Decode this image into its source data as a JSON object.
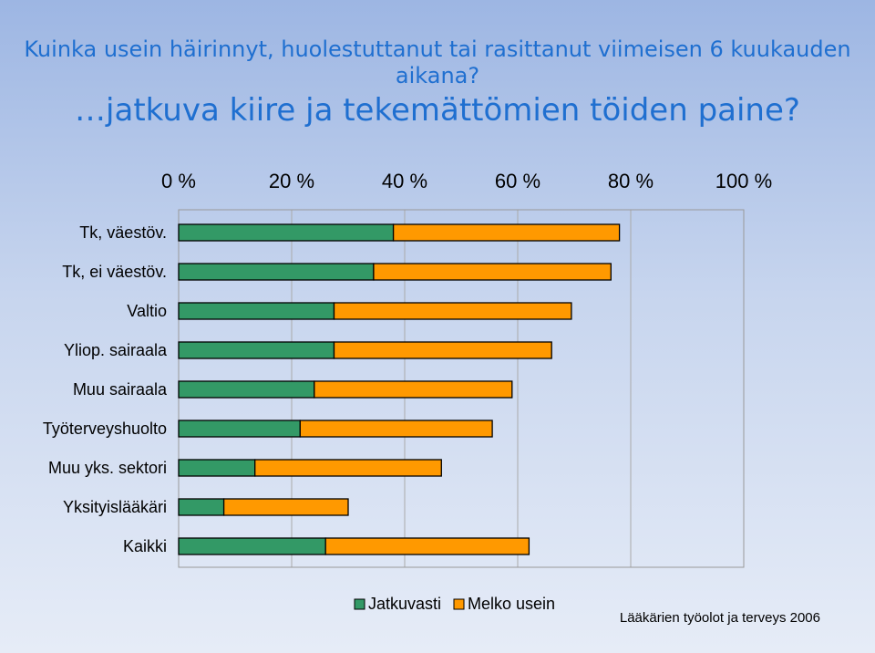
{
  "title_line1": "Kuinka usein häirinnyt, huolestuttanut tai rasittanut viimeisen 6 kuukauden aikana?",
  "title_line2": "…jatkuva kiire ja tekemättömien töiden paine?",
  "source": "Lääkärien työolot ja terveys 2006",
  "colors": {
    "jatkuvasti": "#339966",
    "melko_usein": "#ff9900"
  },
  "chart_data": {
    "type": "bar",
    "orientation": "horizontal",
    "stacked": true,
    "xlim": [
      0,
      100
    ],
    "x_ticks": [
      "0 %",
      "20 %",
      "40 %",
      "60 %",
      "80 %",
      "100 %"
    ],
    "x_tick_values": [
      0,
      20,
      40,
      60,
      80,
      100
    ],
    "x_axis_position": "top",
    "grid": true,
    "legend_position": "bottom",
    "categories": [
      "Tk, väestöv.",
      "Tk, ei väestöv.",
      "Valtio",
      "Yliop. sairaala",
      "Muu sairaala",
      "Työterveyshuolto",
      "Muu yks. sektori",
      "Yksityislääkäri",
      "Kaikki"
    ],
    "series": [
      {
        "name": "Jatkuvasti",
        "values": [
          38,
          34.5,
          27.5,
          27.5,
          24,
          21.5,
          13.5,
          8,
          26
        ]
      },
      {
        "name": "Melko usein",
        "values": [
          40,
          42,
          42,
          38.5,
          35,
          34,
          33,
          22,
          36
        ]
      }
    ]
  }
}
